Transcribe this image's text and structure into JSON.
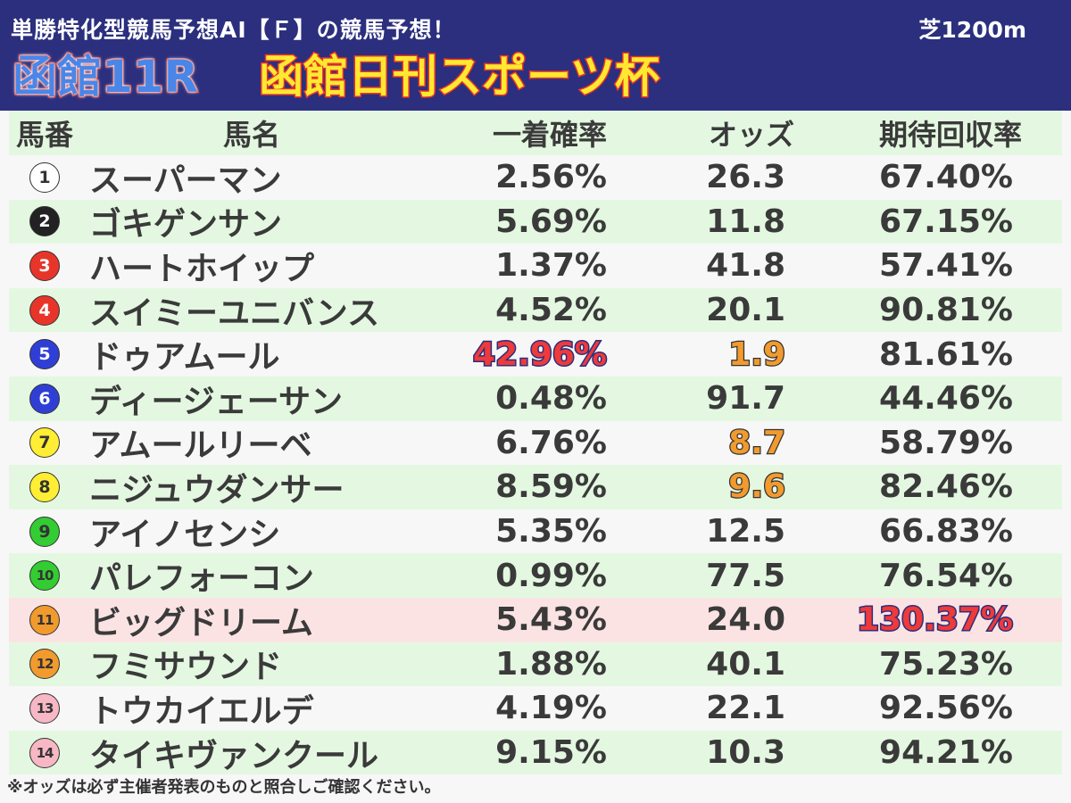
{
  "header": {
    "subtitle": "単勝特化型競馬予想AI【Ｆ】の競馬予想！",
    "distance": "芝1200m",
    "race_number": "函館11R",
    "race_name": "函館日刊スポーツ杯"
  },
  "columns": {
    "number": "馬番",
    "name": "馬名",
    "win_prob": "一着確率",
    "odds": "オッズ",
    "return_rate": "期待回収率"
  },
  "rows": [
    {
      "num": "1",
      "name": "スーパーマン",
      "prob": "2.56%",
      "odds": "26.3",
      "ret": "67.40%",
      "badge_bg": "#ffffff",
      "badge_fg": "#333333"
    },
    {
      "num": "2",
      "name": "ゴキゲンサン",
      "prob": "5.69%",
      "odds": "11.8",
      "ret": "67.15%",
      "badge_bg": "#222222",
      "badge_fg": "#ffffff"
    },
    {
      "num": "3",
      "name": "ハートホイップ",
      "prob": "1.37%",
      "odds": "41.8",
      "ret": "57.41%",
      "badge_bg": "#e8352a",
      "badge_fg": "#ffffff"
    },
    {
      "num": "4",
      "name": "スイミーユニバンス",
      "prob": "4.52%",
      "odds": "20.1",
      "ret": "90.81%",
      "badge_bg": "#e8352a",
      "badge_fg": "#ffffff"
    },
    {
      "num": "5",
      "name": "ドゥアムール",
      "prob": "42.96%",
      "odds": "1.9",
      "ret": "81.61%",
      "badge_bg": "#2f3fd6",
      "badge_fg": "#ffffff"
    },
    {
      "num": "6",
      "name": "ディージェーサン",
      "prob": "0.48%",
      "odds": "91.7",
      "ret": "44.46%",
      "badge_bg": "#2f3fd6",
      "badge_fg": "#ffffff"
    },
    {
      "num": "7",
      "name": "アムールリーベ",
      "prob": "6.76%",
      "odds": "8.7",
      "ret": "58.79%",
      "badge_bg": "#ffee33",
      "badge_fg": "#333333"
    },
    {
      "num": "8",
      "name": "ニジュウダンサー",
      "prob": "8.59%",
      "odds": "9.6",
      "ret": "82.46%",
      "badge_bg": "#ffee33",
      "badge_fg": "#333333"
    },
    {
      "num": "9",
      "name": "アイノセンシ",
      "prob": "5.35%",
      "odds": "12.5",
      "ret": "66.83%",
      "badge_bg": "#33cc33",
      "badge_fg": "#333333"
    },
    {
      "num": "10",
      "name": "パレフォーコン",
      "prob": "0.99%",
      "odds": "77.5",
      "ret": "76.54%",
      "badge_bg": "#33cc33",
      "badge_fg": "#333333"
    },
    {
      "num": "11",
      "name": "ビッグドリーム",
      "prob": "5.43%",
      "odds": "24.0",
      "ret": "130.37%",
      "badge_bg": "#f19a2e",
      "badge_fg": "#333333"
    },
    {
      "num": "12",
      "name": "フミサウンド",
      "prob": "1.88%",
      "odds": "40.1",
      "ret": "75.23%",
      "badge_bg": "#f19a2e",
      "badge_fg": "#333333"
    },
    {
      "num": "13",
      "name": "トウカイエルデ",
      "prob": "4.19%",
      "odds": "22.1",
      "ret": "92.56%",
      "badge_bg": "#f7b7c4",
      "badge_fg": "#333333"
    },
    {
      "num": "14",
      "name": "タイキヴァンクール",
      "prob": "9.15%",
      "odds": "10.3",
      "ret": "94.21%",
      "badge_bg": "#f7b7c4",
      "badge_fg": "#333333"
    }
  ],
  "footer": {
    "note": "※オッズは必ず主催者発表のものと照合しご確認ください。"
  }
}
